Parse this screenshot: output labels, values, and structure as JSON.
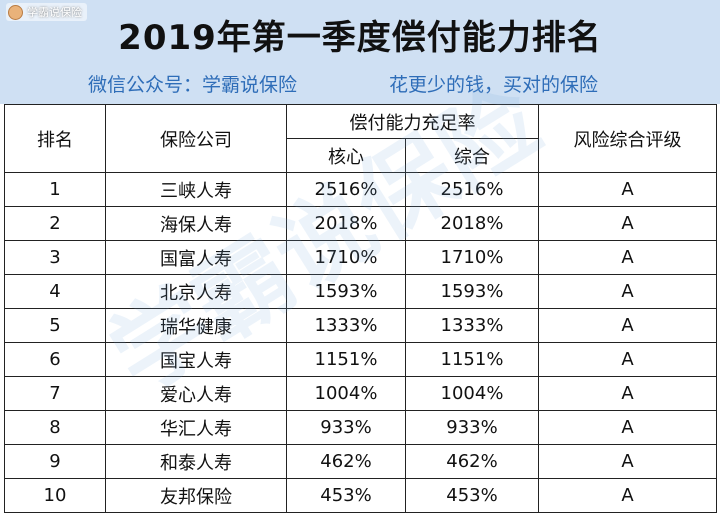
{
  "brand": {
    "name": "学霸说保险"
  },
  "title": "2019年第一季度偿付能力排名",
  "subtitle": {
    "left": "微信公众号：学霸说保险",
    "right": "花更少的钱，买对的保险"
  },
  "table": {
    "headers": {
      "rank": "排名",
      "company": "保险公司",
      "solvency": "偿付能力充足率",
      "core": "核心",
      "comprehensive": "综合",
      "risk_rating": "风险综合评级"
    },
    "rows": [
      {
        "rank": "1",
        "company": "三峡人寿",
        "core": "2516%",
        "comprehensive": "2516%",
        "rating": "A"
      },
      {
        "rank": "2",
        "company": "海保人寿",
        "core": "2018%",
        "comprehensive": "2018%",
        "rating": "A"
      },
      {
        "rank": "3",
        "company": "国富人寿",
        "core": "1710%",
        "comprehensive": "1710%",
        "rating": "A"
      },
      {
        "rank": "4",
        "company": "北京人寿",
        "core": "1593%",
        "comprehensive": "1593%",
        "rating": "A"
      },
      {
        "rank": "5",
        "company": "瑞华健康",
        "core": "1333%",
        "comprehensive": "1333%",
        "rating": "A"
      },
      {
        "rank": "6",
        "company": "国宝人寿",
        "core": "1151%",
        "comprehensive": "1151%",
        "rating": "A"
      },
      {
        "rank": "7",
        "company": "爱心人寿",
        "core": "1004%",
        "comprehensive": "1004%",
        "rating": "A"
      },
      {
        "rank": "8",
        "company": "华汇人寿",
        "core": "933%",
        "comprehensive": "933%",
        "rating": "A"
      },
      {
        "rank": "9",
        "company": "和泰人寿",
        "core": "462%",
        "comprehensive": "462%",
        "rating": "A"
      },
      {
        "rank": "10",
        "company": "友邦保险",
        "core": "453%",
        "comprehensive": "453%",
        "rating": "A"
      }
    ]
  },
  "watermark": "学霸说保险",
  "colors": {
    "header_bg": "#cfe0f3",
    "subtitle": "#2e6db8",
    "border": "#222222"
  }
}
